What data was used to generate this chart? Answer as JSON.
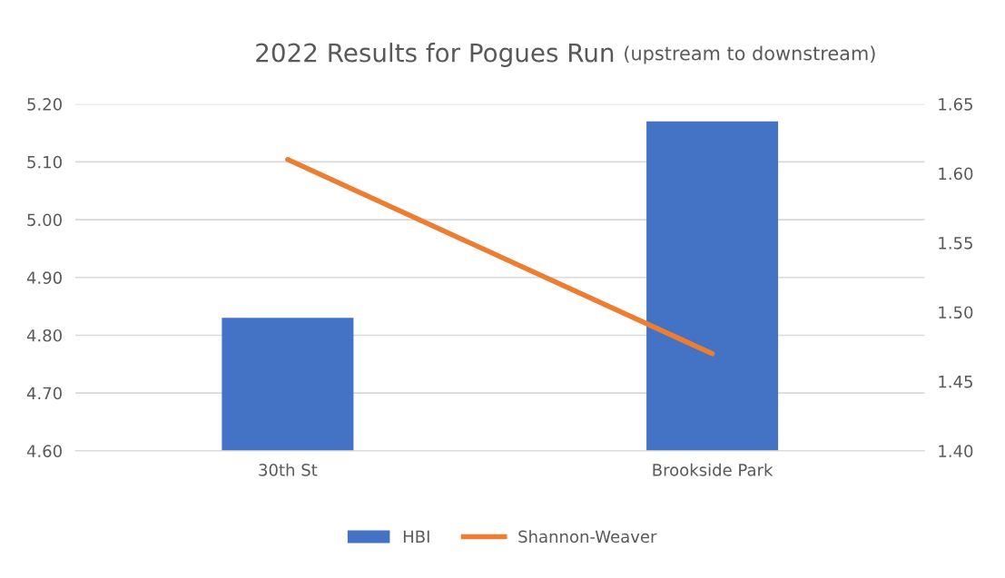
{
  "chart_data": {
    "type": "bar",
    "title": "2022 Results for Pogues Run",
    "subtitle": "(upstream to downstream)",
    "categories": [
      "30th St",
      "Brookside Park"
    ],
    "series": [
      {
        "name": "HBI",
        "color": "#4472c4",
        "values": [
          4.83,
          5.17
        ]
      },
      {
        "name": "Shannon-Weaver",
        "color": "#ed7d31",
        "values": [
          1.61,
          1.47
        ],
        "type": "line",
        "axis": "y2"
      }
    ],
    "ylim": [
      4.6,
      5.2
    ],
    "yticks": [
      {
        "value": 4.6,
        "label": "4.60"
      },
      {
        "value": 4.7,
        "label": "4.70"
      },
      {
        "value": 4.8,
        "label": "4.80"
      },
      {
        "value": 4.9,
        "label": "4.90"
      },
      {
        "value": 5.0,
        "label": "5.00"
      },
      {
        "value": 5.1,
        "label": "5.10"
      },
      {
        "value": 5.2,
        "label": "5.20"
      }
    ],
    "y2lim": [
      1.4,
      1.65
    ],
    "y2ticks": [
      {
        "value": 1.4,
        "label": "1.40"
      },
      {
        "value": 1.45,
        "label": "1.45"
      },
      {
        "value": 1.5,
        "label": "1.50"
      },
      {
        "value": 1.55,
        "label": "1.55"
      },
      {
        "value": 1.6,
        "label": "1.60"
      },
      {
        "value": 1.65,
        "label": "1.65"
      }
    ],
    "grid": "y",
    "legend": "bottom"
  }
}
